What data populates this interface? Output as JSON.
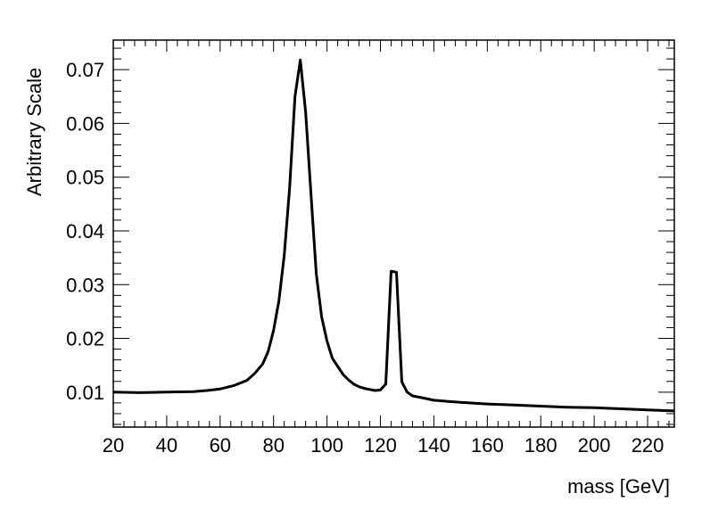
{
  "chart_data": {
    "type": "line",
    "title": "",
    "xlabel": "mass [GeV]",
    "ylabel": "Arbitrary Scale",
    "xlim": [
      20,
      230
    ],
    "ylim": [
      0.0035,
      0.0755
    ],
    "xticks": [
      "20",
      "40",
      "60",
      "80",
      "100",
      "120",
      "140",
      "160",
      "180",
      "200",
      "220"
    ],
    "yticks": [
      "0.01",
      "0.02",
      "0.03",
      "0.04",
      "0.05",
      "0.06",
      "0.07"
    ],
    "grid": false,
    "legend": "none",
    "line_color": "#000000",
    "series": [
      {
        "x": [
          20,
          30,
          40,
          50,
          55,
          60,
          65,
          70,
          73,
          76,
          78,
          80,
          82,
          84,
          86,
          88,
          90,
          92,
          94,
          96,
          98,
          100,
          102,
          104,
          106,
          108,
          110,
          112,
          114,
          116,
          118,
          120,
          122,
          124,
          126,
          128,
          130,
          132,
          136,
          140,
          150,
          160,
          170,
          180,
          190,
          200,
          210,
          220,
          230
        ],
        "y": [
          0.01,
          0.0099,
          0.01,
          0.0101,
          0.0103,
          0.0106,
          0.0112,
          0.0122,
          0.0135,
          0.0153,
          0.0176,
          0.0215,
          0.027,
          0.0355,
          0.048,
          0.065,
          0.0718,
          0.062,
          0.047,
          0.032,
          0.024,
          0.0195,
          0.0163,
          0.0148,
          0.0133,
          0.0123,
          0.0115,
          0.011,
          0.0107,
          0.0105,
          0.0103,
          0.0104,
          0.0115,
          0.0325,
          0.0323,
          0.0119,
          0.01,
          0.0093,
          0.0089,
          0.0085,
          0.0081,
          0.0078,
          0.0076,
          0.0074,
          0.0072,
          0.0071,
          0.0069,
          0.0067,
          0.0065
        ]
      }
    ]
  }
}
